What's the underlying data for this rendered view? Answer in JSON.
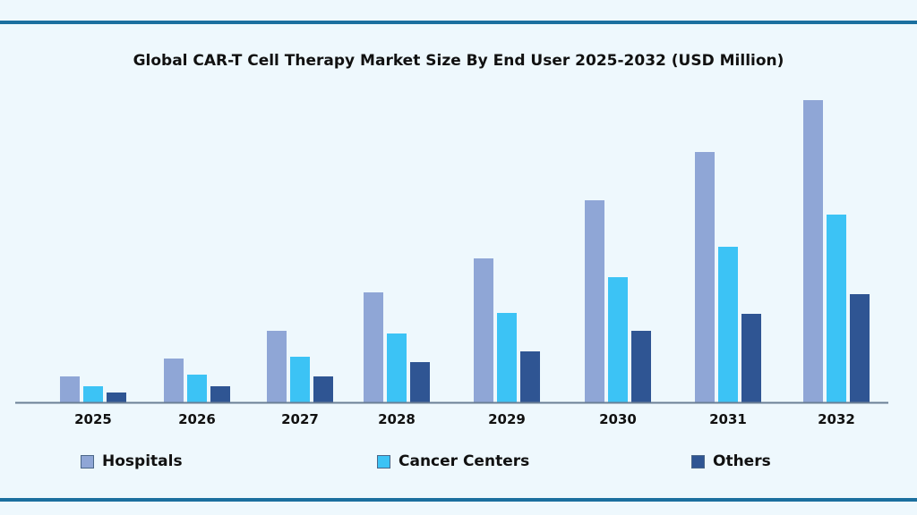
{
  "chart_data": {
    "type": "bar",
    "title": "Global CAR-T Cell Therapy Market Size By End User 2025-2032 (USD Million)",
    "xlabel": "",
    "ylabel": "",
    "y_axis_shown": false,
    "grid": false,
    "legend_position": "bottom",
    "categories": [
      "2025",
      "2026",
      "2027",
      "2028",
      "2029",
      "2030",
      "2031",
      "2032"
    ],
    "series": [
      {
        "name": "Hospitals",
        "color": "#8fa6d6",
        "values": [
          29,
          49,
          80,
          123,
          161,
          226,
          280,
          338
        ]
      },
      {
        "name": "Cancer Centers",
        "color": "#3cc3f5",
        "values": [
          18,
          31,
          51,
          77,
          100,
          140,
          174,
          210
        ]
      },
      {
        "name": "Others",
        "color": "#2f5593",
        "values": [
          11,
          18,
          29,
          45,
          57,
          80,
          99,
          121
        ]
      }
    ],
    "ylim": [
      0,
      338
    ]
  }
}
